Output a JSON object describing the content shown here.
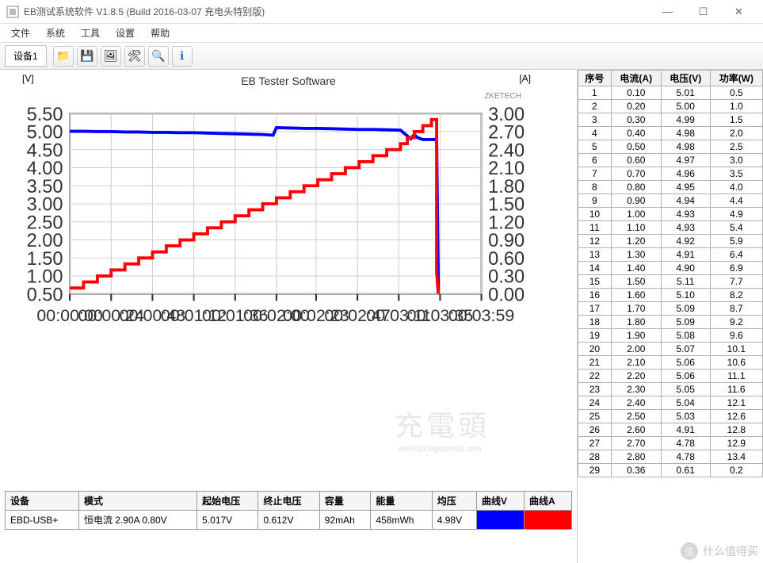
{
  "window": {
    "title": "EB测试系统软件 V1.8.5 (Build 2016-03-07 充电头特别版)"
  },
  "menubar": {
    "items": [
      "文件",
      "系统",
      "工具",
      "设置",
      "帮助"
    ]
  },
  "toolbar": {
    "device_tab": "设备1",
    "icons": [
      "folder-icon",
      "save-icon",
      "image-icon",
      "tools-icon",
      "zoom-icon",
      "info-icon"
    ]
  },
  "chart": {
    "title": "EB Tester Software",
    "watermark_top": "ZKETECH",
    "left_axis": {
      "label": "[V]",
      "min": 0.5,
      "max": 5.5,
      "step": 0.5,
      "color": "#0000ff"
    },
    "right_axis": {
      "label": "[A]",
      "min": 0.0,
      "max": 3.0,
      "step": 0.3,
      "color": "#ff0000"
    },
    "x_axis": {
      "ticks": [
        "00:00:00",
        "00:00:24",
        "00:00:48",
        "00:01:12",
        "00:01:36",
        "00:02:00",
        "00:02:23",
        "00:02:47",
        "00:03:11",
        "00:03:35",
        "00:03:59"
      ],
      "seconds": [
        0,
        24,
        48,
        72,
        96,
        120,
        143,
        167,
        191,
        215,
        239
      ]
    },
    "grid_color": "#d0d0d0",
    "background_color": "#ffffff",
    "voltage_series": {
      "color": "#0000ff",
      "points": [
        [
          0,
          5.01
        ],
        [
          8,
          5.01
        ],
        [
          16,
          5.0
        ],
        [
          24,
          5.0
        ],
        [
          32,
          4.99
        ],
        [
          40,
          4.99
        ],
        [
          48,
          4.98
        ],
        [
          56,
          4.98
        ],
        [
          64,
          4.97
        ],
        [
          72,
          4.97
        ],
        [
          80,
          4.96
        ],
        [
          88,
          4.95
        ],
        [
          96,
          4.94
        ],
        [
          104,
          4.93
        ],
        [
          112,
          4.92
        ],
        [
          118,
          4.9
        ],
        [
          120,
          5.11
        ],
        [
          128,
          5.1
        ],
        [
          136,
          5.09
        ],
        [
          144,
          5.09
        ],
        [
          152,
          5.08
        ],
        [
          160,
          5.07
        ],
        [
          168,
          5.06
        ],
        [
          176,
          5.06
        ],
        [
          184,
          5.05
        ],
        [
          192,
          5.04
        ],
        [
          198,
          4.8
        ],
        [
          200,
          4.92
        ],
        [
          202,
          4.83
        ],
        [
          205,
          4.78
        ],
        [
          210,
          4.78
        ],
        [
          213,
          4.78
        ],
        [
          214,
          0.61
        ]
      ]
    },
    "current_series": {
      "color": "#ff0000",
      "points": [
        [
          0,
          0.1
        ],
        [
          8,
          0.1
        ],
        [
          8,
          0.2
        ],
        [
          16,
          0.2
        ],
        [
          16,
          0.3
        ],
        [
          24,
          0.3
        ],
        [
          24,
          0.4
        ],
        [
          32,
          0.4
        ],
        [
          32,
          0.5
        ],
        [
          40,
          0.5
        ],
        [
          40,
          0.6
        ],
        [
          48,
          0.6
        ],
        [
          48,
          0.7
        ],
        [
          56,
          0.7
        ],
        [
          56,
          0.8
        ],
        [
          64,
          0.8
        ],
        [
          64,
          0.9
        ],
        [
          72,
          0.9
        ],
        [
          72,
          1.0
        ],
        [
          80,
          1.0
        ],
        [
          80,
          1.1
        ],
        [
          88,
          1.1
        ],
        [
          88,
          1.2
        ],
        [
          96,
          1.2
        ],
        [
          96,
          1.3
        ],
        [
          104,
          1.3
        ],
        [
          104,
          1.4
        ],
        [
          112,
          1.4
        ],
        [
          112,
          1.5
        ],
        [
          120,
          1.5
        ],
        [
          120,
          1.6
        ],
        [
          128,
          1.6
        ],
        [
          128,
          1.7
        ],
        [
          136,
          1.7
        ],
        [
          136,
          1.8
        ],
        [
          144,
          1.8
        ],
        [
          144,
          1.9
        ],
        [
          152,
          1.9
        ],
        [
          152,
          2.0
        ],
        [
          160,
          2.0
        ],
        [
          160,
          2.1
        ],
        [
          168,
          2.1
        ],
        [
          168,
          2.2
        ],
        [
          176,
          2.2
        ],
        [
          176,
          2.3
        ],
        [
          184,
          2.3
        ],
        [
          184,
          2.4
        ],
        [
          192,
          2.4
        ],
        [
          192,
          2.5
        ],
        [
          196,
          2.5
        ],
        [
          196,
          2.6
        ],
        [
          200,
          2.6
        ],
        [
          200,
          2.7
        ],
        [
          205,
          2.7
        ],
        [
          205,
          2.8
        ],
        [
          210,
          2.8
        ],
        [
          210,
          2.9
        ],
        [
          213,
          2.9
        ],
        [
          213,
          0.36
        ],
        [
          214,
          0.0
        ]
      ]
    },
    "watermark_big": "充電頭",
    "watermark_url": "www.chongdiantou.com"
  },
  "status_table": {
    "headers": [
      "设备",
      "模式",
      "起始电压",
      "终止电压",
      "容量",
      "能量",
      "均压",
      "曲线V",
      "曲线A"
    ],
    "row": {
      "device": "EBD-USB+",
      "mode": "恒电流 2.90A 0.80V",
      "start_v": "5.017V",
      "end_v": "0.612V",
      "capacity": "92mAh",
      "energy": "458mWh",
      "avg_v": "4.98V"
    },
    "swatch_v_color": "#0000ff",
    "swatch_a_color": "#ff0000"
  },
  "data_table": {
    "headers": [
      "序号",
      "电流(A)",
      "电压(V)",
      "功率(W)"
    ],
    "rows": [
      [
        1,
        "0.10",
        "5.01",
        "0.5"
      ],
      [
        2,
        "0.20",
        "5.00",
        "1.0"
      ],
      [
        3,
        "0.30",
        "4.99",
        "1.5"
      ],
      [
        4,
        "0.40",
        "4.98",
        "2.0"
      ],
      [
        5,
        "0.50",
        "4.98",
        "2.5"
      ],
      [
        6,
        "0.60",
        "4.97",
        "3.0"
      ],
      [
        7,
        "0.70",
        "4.96",
        "3.5"
      ],
      [
        8,
        "0.80",
        "4.95",
        "4.0"
      ],
      [
        9,
        "0.90",
        "4.94",
        "4.4"
      ],
      [
        10,
        "1.00",
        "4.93",
        "4.9"
      ],
      [
        11,
        "1.10",
        "4.93",
        "5.4"
      ],
      [
        12,
        "1.20",
        "4.92",
        "5.9"
      ],
      [
        13,
        "1.30",
        "4.91",
        "6.4"
      ],
      [
        14,
        "1.40",
        "4.90",
        "6.9"
      ],
      [
        15,
        "1.50",
        "5.11",
        "7.7"
      ],
      [
        16,
        "1.60",
        "5.10",
        "8.2"
      ],
      [
        17,
        "1.70",
        "5.09",
        "8.7"
      ],
      [
        18,
        "1.80",
        "5.09",
        "9.2"
      ],
      [
        19,
        "1.90",
        "5.08",
        "9.6"
      ],
      [
        20,
        "2.00",
        "5.07",
        "10.1"
      ],
      [
        21,
        "2.10",
        "5.06",
        "10.6"
      ],
      [
        22,
        "2.20",
        "5.06",
        "11.1"
      ],
      [
        23,
        "2.30",
        "5.05",
        "11.6"
      ],
      [
        24,
        "2.40",
        "5.04",
        "12.1"
      ],
      [
        25,
        "2.50",
        "5.03",
        "12.6"
      ],
      [
        26,
        "2.60",
        "4.91",
        "12.8"
      ],
      [
        27,
        "2.70",
        "4.78",
        "12.9"
      ],
      [
        28,
        "2.80",
        "4.78",
        "13.4"
      ],
      [
        29,
        "0.36",
        "0.61",
        "0.2"
      ]
    ]
  },
  "footer_watermark": "什么值得买"
}
